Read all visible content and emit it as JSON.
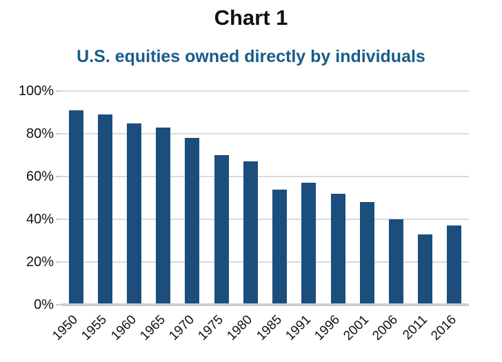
{
  "title": "Chart 1",
  "subtitle": "U.S. equities owned directly by individuals",
  "colors": {
    "bar": "#1b4e7c",
    "subtitle_text": "#185c8a",
    "title_text": "#111111",
    "gridline": "#d9dadc",
    "baseline": "#c9cccf",
    "tick_label": "#111111"
  },
  "chart_data": {
    "type": "bar",
    "categories": [
      "1950",
      "1955",
      "1960",
      "1965",
      "1970",
      "1975",
      "1980",
      "1985",
      "1991",
      "1996",
      "2001",
      "2006",
      "2011",
      "2016"
    ],
    "values": [
      91,
      89,
      85,
      83,
      78,
      70,
      67,
      54,
      57,
      52,
      48,
      40,
      33,
      37
    ],
    "title": "Chart 1",
    "subtitle": "U.S. equities owned directly by individuals",
    "xlabel": "",
    "ylabel": "",
    "ylim": [
      0,
      100
    ],
    "ytick_step": 20,
    "ytick_labels": [
      "0%",
      "20%",
      "40%",
      "60%",
      "80%",
      "100%"
    ],
    "grid": true,
    "legend": false,
    "bar_color": "#1b4e7c",
    "x_label_rotation_deg": -45
  }
}
